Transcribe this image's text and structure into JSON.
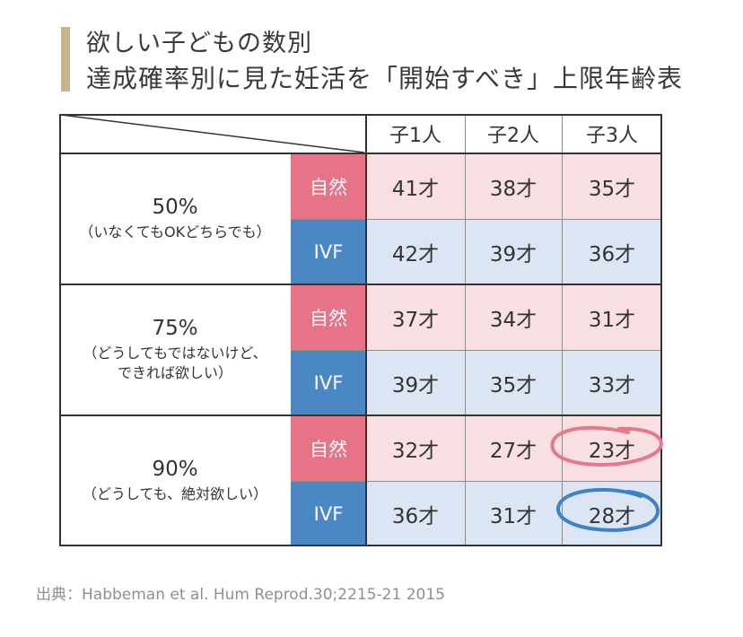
{
  "title": {
    "line1": "欲しい子どもの数別",
    "line2": "達成確率別に見た妊活を「開始すべき」上限年齢表"
  },
  "table": {
    "columns": [
      "子1人",
      "子2人",
      "子3人"
    ],
    "groups": [
      {
        "percent": "50%",
        "description": [
          "（いなくてもOKどちらでも）"
        ],
        "rows": [
          {
            "method": "自然",
            "values": [
              "41才",
              "38才",
              "35才"
            ]
          },
          {
            "method": "IVF",
            "values": [
              "42才",
              "39才",
              "36才"
            ]
          }
        ]
      },
      {
        "percent": "75%",
        "description": [
          "（どうしてもではないけど、",
          "できれば欲しい）"
        ],
        "rows": [
          {
            "method": "自然",
            "values": [
              "37才",
              "34才",
              "31才"
            ]
          },
          {
            "method": "IVF",
            "values": [
              "39才",
              "35才",
              "33才"
            ]
          }
        ]
      },
      {
        "percent": "90%",
        "description": [
          "（どうしても、絶対欲しい）"
        ],
        "rows": [
          {
            "method": "自然",
            "values": [
              "32才",
              "27才",
              "23才"
            ]
          },
          {
            "method": "IVF",
            "values": [
              "36才",
              "31才",
              "28才"
            ]
          }
        ]
      }
    ]
  },
  "highlights": {
    "circled_cells": [
      "23才",
      "28才"
    ],
    "colors": {
      "natural_circle": "#e6788c",
      "ivf_circle": "#3b82c6"
    }
  },
  "colors": {
    "natural_label": "#e67386",
    "ivf_label": "#4b86c5",
    "natural_cell": "#f9dfe2",
    "ivf_cell": "#dce5f4",
    "title_bar": "#c9b58d"
  },
  "source": "出典：Habbeman et al. Hum Reprod.30;2215-21 2015"
}
